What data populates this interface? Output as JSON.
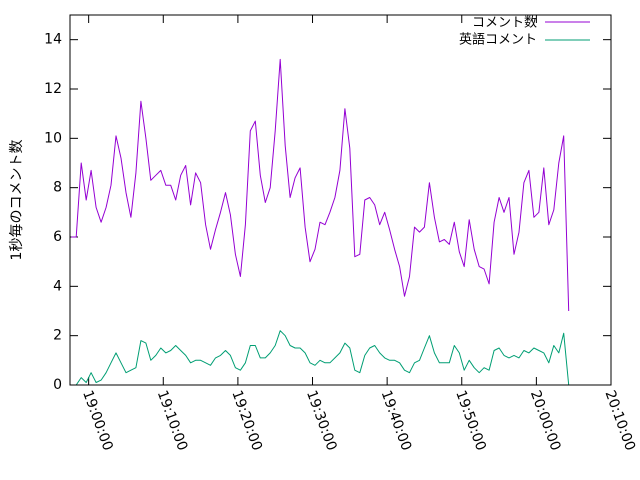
{
  "chart_data": {
    "type": "line",
    "title": "",
    "xlabel": "",
    "ylabel": "1秒毎のコメント数",
    "ylim": [
      0,
      15
    ],
    "yticks": [
      0,
      2,
      4,
      6,
      8,
      10,
      12,
      14
    ],
    "x_range": [
      "18:57:30",
      "20:10:00"
    ],
    "x_ticks": [
      "19:00:00",
      "19:10:00",
      "19:20:00",
      "19:30:00",
      "19:40:00",
      "19:50:00",
      "20:00:00",
      "20:10:00"
    ],
    "x_step_seconds": 40,
    "x_start": "18:57:40",
    "grid": false,
    "legend_position": "top-right",
    "series": [
      {
        "name": "コメント数",
        "color": "#9400d3",
        "values": [
          6.0,
          6.0,
          9.0,
          7.5,
          8.7,
          7.2,
          6.6,
          7.2,
          8.1,
          10.1,
          9.2,
          7.8,
          6.8,
          8.6,
          11.5,
          10.0,
          8.3,
          8.5,
          8.7,
          8.1,
          8.1,
          7.5,
          8.5,
          8.9,
          7.3,
          8.6,
          8.2,
          6.5,
          5.5,
          6.3,
          7.0,
          7.8,
          6.9,
          5.3,
          4.4,
          6.5,
          10.3,
          10.7,
          8.5,
          7.4,
          8.0,
          10.3,
          13.2,
          9.7,
          7.6,
          8.4,
          8.8,
          6.4,
          5.0,
          5.5,
          6.6,
          6.5,
          7.0,
          7.6,
          8.7,
          11.2,
          9.6,
          5.2,
          5.3,
          7.5,
          7.6,
          7.3,
          6.5,
          7.0,
          6.3,
          5.5,
          4.8,
          3.6,
          4.4,
          6.4,
          6.2,
          6.4,
          8.2,
          6.8,
          5.8,
          5.9,
          5.7,
          6.6,
          5.4,
          4.8,
          6.7,
          5.5,
          4.8,
          4.7,
          4.1,
          6.6,
          7.6,
          7.0,
          7.6,
          5.3,
          6.2,
          8.2,
          8.7,
          6.8,
          7.0,
          8.8,
          6.5,
          7.1,
          9.0,
          10.1,
          3.0
        ]
      },
      {
        "name": "英語コメント",
        "color": "#009e73",
        "values": [
          0.0,
          0.0,
          0.3,
          0.1,
          0.5,
          0.1,
          0.2,
          0.5,
          0.9,
          1.3,
          0.9,
          0.5,
          0.6,
          0.7,
          1.8,
          1.7,
          1.0,
          1.2,
          1.5,
          1.3,
          1.4,
          1.6,
          1.4,
          1.2,
          0.9,
          1.0,
          1.0,
          0.9,
          0.8,
          1.1,
          1.2,
          1.4,
          1.2,
          0.7,
          0.6,
          0.9,
          1.6,
          1.6,
          1.1,
          1.1,
          1.3,
          1.6,
          2.2,
          2.0,
          1.6,
          1.5,
          1.5,
          1.3,
          0.9,
          0.8,
          1.0,
          0.9,
          0.9,
          1.1,
          1.3,
          1.7,
          1.5,
          0.6,
          0.5,
          1.2,
          1.5,
          1.6,
          1.3,
          1.1,
          1.0,
          1.0,
          0.9,
          0.6,
          0.5,
          0.9,
          1.0,
          1.5,
          2.0,
          1.3,
          0.9,
          0.9,
          0.9,
          1.6,
          1.3,
          0.6,
          1.0,
          0.7,
          0.5,
          0.7,
          0.6,
          1.4,
          1.5,
          1.2,
          1.1,
          1.2,
          1.1,
          1.4,
          1.3,
          1.5,
          1.4,
          1.3,
          0.9,
          1.6,
          1.3,
          2.1,
          0.0
        ]
      }
    ]
  }
}
